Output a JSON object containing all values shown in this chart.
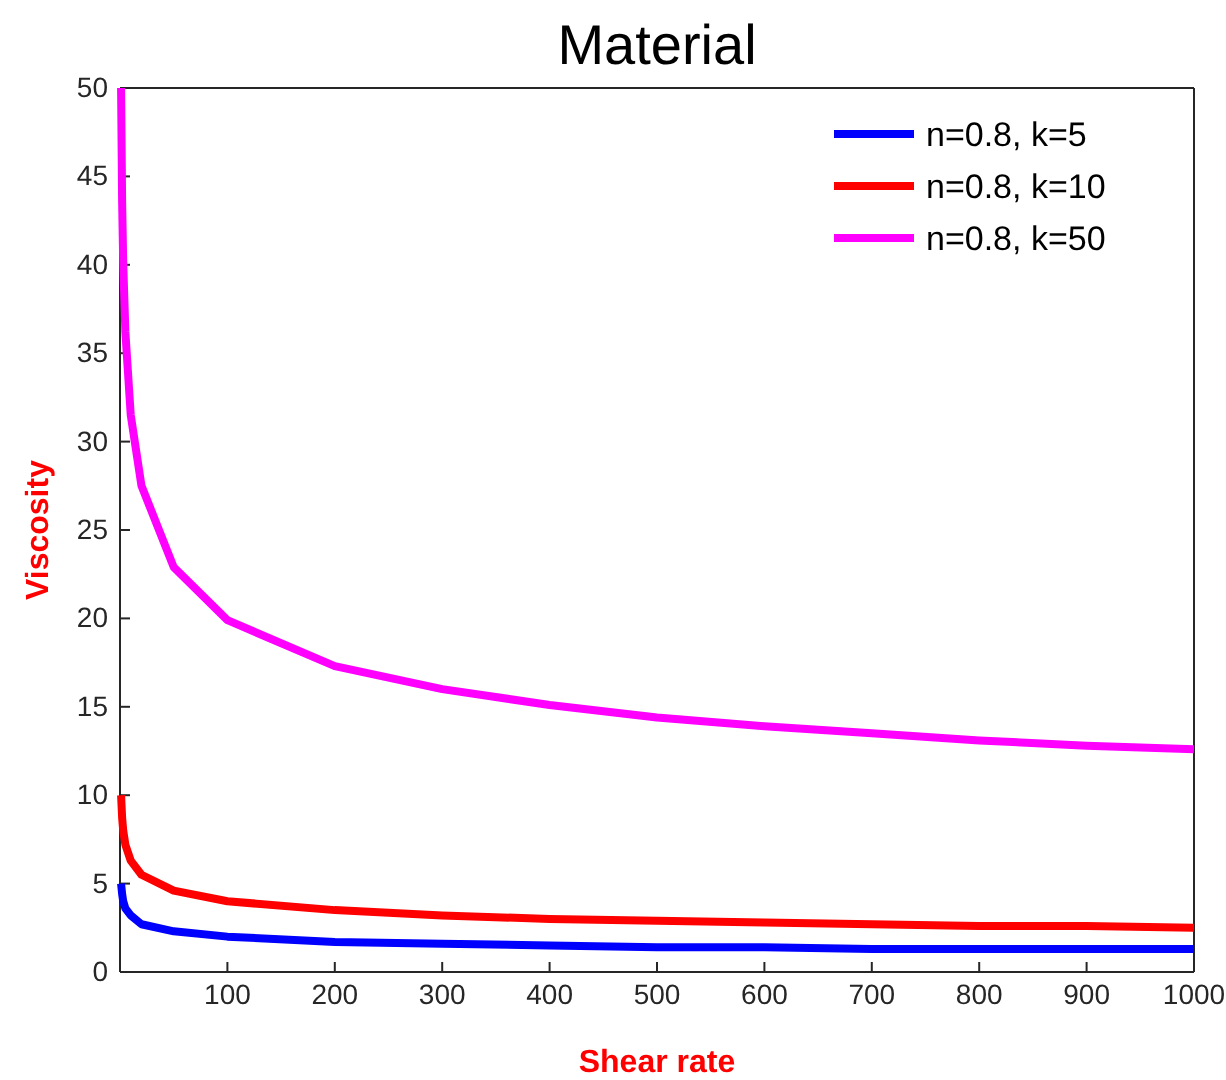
{
  "chart_data": {
    "type": "line",
    "title": "Material",
    "xlabel": "Shear rate",
    "ylabel": "Viscosity",
    "x": [
      1,
      2,
      3,
      5,
      10,
      20,
      50,
      100,
      200,
      300,
      400,
      500,
      600,
      700,
      800,
      900,
      1000
    ],
    "series": [
      {
        "name": "n=0.8, k=5",
        "color": "#0000ff",
        "values": [
          5,
          4.4,
          4,
          3.6,
          3.2,
          2.7,
          2.3,
          2,
          1.7,
          1.6,
          1.5,
          1.4,
          1.4,
          1.3,
          1.3,
          1.3,
          1.3
        ]
      },
      {
        "name": "n=0.8, k=10",
        "color": "#ff0000",
        "values": [
          10,
          8.7,
          8,
          7.2,
          6.3,
          5.5,
          4.6,
          4,
          3.5,
          3.2,
          3,
          2.9,
          2.8,
          2.7,
          2.6,
          2.6,
          2.5
        ]
      },
      {
        "name": "n=0.8, k=50",
        "color": "#ff00ff",
        "values": [
          50,
          43.5,
          40.1,
          36.2,
          31.5,
          27.5,
          22.9,
          19.9,
          17.3,
          16,
          15.1,
          14.4,
          13.9,
          13.5,
          13.1,
          12.8,
          12.6
        ]
      }
    ],
    "xlim": [
      0,
      1000
    ],
    "xticks": [
      100,
      200,
      300,
      400,
      500,
      600,
      700,
      800,
      900,
      1000
    ],
    "ylim": [
      0,
      50
    ],
    "yticks": [
      0,
      5,
      10,
      15,
      20,
      25,
      30,
      35,
      40,
      45,
      50
    ],
    "legend": "top right",
    "line_style": "solid",
    "marker": "none",
    "grid": false
  }
}
